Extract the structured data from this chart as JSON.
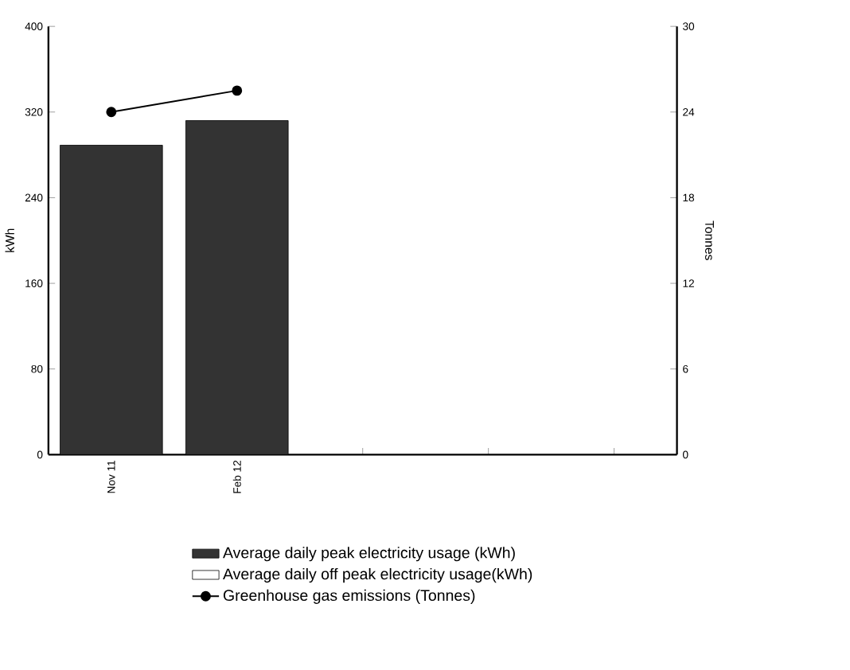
{
  "chart_data": {
    "type": "bar",
    "categories": [
      "Nov 11",
      "Feb 12",
      null,
      null,
      null
    ],
    "ylabel": "kWh",
    "y2label": "Tonnes",
    "ylim": [
      0,
      400
    ],
    "yticks": [
      0,
      80,
      160,
      240,
      320,
      400
    ],
    "y2lim": [
      0,
      30
    ],
    "y2ticks": [
      0,
      6,
      12,
      18,
      24,
      30
    ],
    "legend": "bottom",
    "grid": false,
    "series": [
      {
        "name": "Average daily peak electricity usage (kWh)",
        "color": "#333333",
        "values": [
          289,
          312,
          null,
          null,
          null
        ]
      },
      {
        "name": "Average daily off peak electricity usage(kWh)",
        "color": "#ffffff",
        "values": [
          null,
          null,
          null,
          null,
          null
        ]
      },
      {
        "name": "Greenhouse gas emissions (Tonnes)",
        "type": "line",
        "axis": "y2",
        "color": "#000000",
        "marker": "circle",
        "line_style": "solid",
        "values": [
          24,
          25.5,
          null,
          null,
          null
        ]
      }
    ]
  }
}
